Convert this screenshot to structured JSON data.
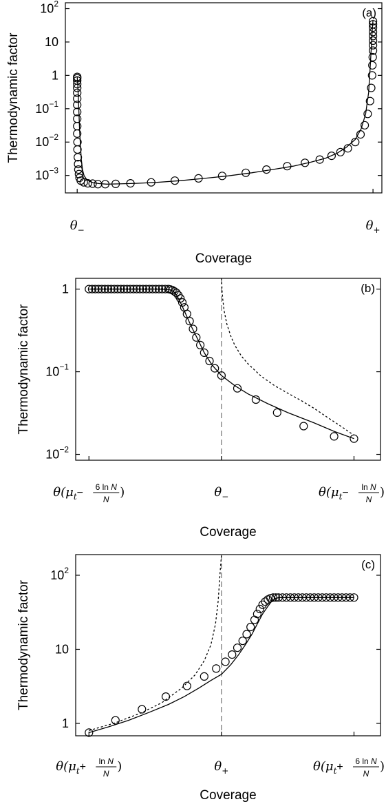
{
  "chart_data": [
    {
      "type": "line",
      "panel_label": "(a)",
      "xlabel": "Coverage",
      "ylabel": "Thermodynamic factor",
      "y_scale": "log",
      "ylim": [
        0.0003,
        150
      ],
      "y_ticks": [
        {
          "value": 0.001,
          "base": "10",
          "exp": "−3"
        },
        {
          "value": 0.01,
          "base": "10",
          "exp": "−2"
        },
        {
          "value": 0.1,
          "base": "10",
          "exp": "−1"
        },
        {
          "value": 1,
          "base": "1",
          "exp": ""
        },
        {
          "value": 10,
          "base": "10",
          "exp": ""
        },
        {
          "value": 100,
          "base": "10",
          "exp": "2"
        }
      ],
      "x_ticks": [
        {
          "x": 0,
          "symbol": "θ",
          "sub": "−"
        },
        {
          "x": 1,
          "symbol": "θ",
          "sub": "+"
        }
      ],
      "xlim": [
        -0.04,
        1.03
      ],
      "series": [
        {
          "style": "solid",
          "x": [
            0.0,
            0.002,
            0.004,
            0.006,
            0.008,
            0.011,
            0.014,
            0.018,
            0.023,
            0.03,
            0.04,
            0.055,
            0.075,
            0.1,
            0.14,
            0.2,
            0.27,
            0.35,
            0.43,
            0.51,
            0.59,
            0.66,
            0.73,
            0.79,
            0.84,
            0.88,
            0.91,
            0.94,
            0.96,
            0.975,
            0.985,
            0.99,
            0.994,
            0.997,
            1.0
          ],
          "y": [
            0.9,
            0.5,
            0.2,
            0.07,
            0.025,
            0.008,
            0.003,
            0.0015,
            0.001,
            0.0008,
            0.00068,
            0.0006,
            0.00057,
            0.00055,
            0.00056,
            0.00058,
            0.00062,
            0.0007,
            0.00082,
            0.00097,
            0.0012,
            0.0015,
            0.0019,
            0.0025,
            0.0033,
            0.0047,
            0.007,
            0.012,
            0.025,
            0.07,
            0.3,
            1.5,
            6,
            20,
            45
          ]
        }
      ],
      "markers": {
        "x": [
          0.0,
          0.0,
          0.0,
          0.0,
          0.0,
          0.0,
          0.0,
          0.0,
          0.0,
          0.0,
          0.0,
          0.0,
          0.001,
          0.001,
          0.002,
          0.003,
          0.004,
          0.006,
          0.008,
          0.012,
          0.022,
          0.036,
          0.052,
          0.07,
          0.095,
          0.13,
          0.18,
          0.25,
          0.33,
          0.41,
          0.49,
          0.57,
          0.64,
          0.71,
          0.77,
          0.82,
          0.86,
          0.89,
          0.915,
          0.94,
          0.958,
          0.972,
          0.982,
          0.99,
          0.994,
          0.997,
          0.998,
          0.999,
          1.0,
          1.0,
          1.0,
          1.0,
          1.0,
          1.0,
          1.0,
          1.0
        ],
        "y": [
          0.9,
          0.82,
          0.7,
          0.55,
          0.42,
          0.3,
          0.2,
          0.13,
          0.08,
          0.05,
          0.03,
          0.018,
          0.01,
          0.006,
          0.0035,
          0.0022,
          0.0015,
          0.0011,
          0.00085,
          0.0007,
          0.00062,
          0.00058,
          0.00057,
          0.00055,
          0.00055,
          0.00056,
          0.00058,
          0.00062,
          0.0007,
          0.00082,
          0.00097,
          0.0012,
          0.0015,
          0.0019,
          0.0024,
          0.003,
          0.0039,
          0.005,
          0.0065,
          0.01,
          0.017,
          0.032,
          0.07,
          0.17,
          0.42,
          1.0,
          2.0,
          3.5,
          5.5,
          8.0,
          11.0,
          15.0,
          20.0,
          27.0,
          34.0,
          42.0
        ]
      }
    },
    {
      "type": "line",
      "panel_label": "(b)",
      "xlabel": "Coverage",
      "ylabel": "Thermodynamic factor",
      "y_scale": "log",
      "ylim": [
        0.0085,
        1.35
      ],
      "y_ticks": [
        {
          "value": 0.01,
          "base": "10",
          "exp": "−2"
        },
        {
          "value": 0.1,
          "base": "10",
          "exp": "−1"
        },
        {
          "value": 1,
          "base": "1",
          "exp": ""
        }
      ],
      "xlim": [
        -0.1,
        2.2
      ],
      "x_ticks": [
        {
          "x": 0,
          "kind": "frac",
          "sign": "−",
          "coef": "6",
          "num": "ln N",
          "den": "N"
        },
        {
          "x": 1,
          "kind": "theta",
          "symbol": "θ",
          "sub": "−"
        },
        {
          "x": 2,
          "kind": "frac",
          "sign": "−",
          "coef": "",
          "num": "ln N",
          "den": "N"
        }
      ],
      "vline_x": 1,
      "series": [
        {
          "style": "solid",
          "x": [
            0.0,
            0.3,
            0.5,
            0.6,
            0.62,
            0.65,
            0.67,
            0.7,
            0.73,
            0.77,
            0.82,
            0.87,
            0.93,
            1.0,
            1.1,
            1.2,
            1.35,
            1.5,
            1.7,
            1.85,
            2.0
          ],
          "y": [
            1.0,
            1.0,
            1.0,
            0.99,
            0.97,
            0.9,
            0.8,
            0.64,
            0.5,
            0.36,
            0.25,
            0.17,
            0.12,
            0.09,
            0.068,
            0.054,
            0.041,
            0.032,
            0.024,
            0.019,
            0.0155
          ]
        },
        {
          "style": "dotted",
          "x": [
            0.998,
            1.0,
            1.005,
            1.01,
            1.02,
            1.04,
            1.07,
            1.1,
            1.15,
            1.2,
            1.3,
            1.4,
            1.5,
            1.6,
            1.7,
            1.8,
            1.9,
            2.0
          ],
          "y": [
            1.35,
            1.35,
            0.95,
            0.75,
            0.55,
            0.38,
            0.27,
            0.21,
            0.155,
            0.125,
            0.088,
            0.068,
            0.055,
            0.045,
            0.036,
            0.028,
            0.022,
            0.017
          ]
        }
      ],
      "markers": {
        "x": [
          0.0,
          0.024,
          0.048,
          0.072,
          0.096,
          0.12,
          0.144,
          0.168,
          0.192,
          0.216,
          0.24,
          0.264,
          0.288,
          0.312,
          0.336,
          0.36,
          0.384,
          0.408,
          0.432,
          0.456,
          0.48,
          0.504,
          0.528,
          0.552,
          0.576,
          0.6,
          0.615,
          0.63,
          0.645,
          0.66,
          0.675,
          0.69,
          0.705,
          0.72,
          0.74,
          0.76,
          0.785,
          0.81,
          0.84,
          0.87,
          0.91,
          0.95,
          1.0,
          1.12,
          1.26,
          1.42,
          1.62,
          1.85,
          2.0
        ],
        "y": [
          1.0,
          1.0,
          1.0,
          1.0,
          1.0,
          1.0,
          1.0,
          1.0,
          1.0,
          1.0,
          1.0,
          1.0,
          1.0,
          1.0,
          1.0,
          1.0,
          1.0,
          1.0,
          1.0,
          1.0,
          1.0,
          1.0,
          1.0,
          1.0,
          1.0,
          1.0,
          0.99,
          0.97,
          0.94,
          0.9,
          0.84,
          0.77,
          0.69,
          0.6,
          0.5,
          0.41,
          0.33,
          0.26,
          0.21,
          0.17,
          0.135,
          0.11,
          0.09,
          0.063,
          0.046,
          0.032,
          0.022,
          0.0165,
          0.0155
        ]
      }
    },
    {
      "type": "line",
      "panel_label": "(c)",
      "xlabel": "Coverage",
      "ylabel": "Thermodynamic factor",
      "y_scale": "log",
      "ylim": [
        0.68,
        190
      ],
      "y_ticks": [
        {
          "value": 1,
          "base": "1",
          "exp": ""
        },
        {
          "value": 10,
          "base": "10",
          "exp": ""
        },
        {
          "value": 100,
          "base": "10",
          "exp": "2"
        }
      ],
      "xlim": [
        -0.1,
        2.2
      ],
      "x_ticks": [
        {
          "x": 0,
          "kind": "frac",
          "sign": "+",
          "coef": "",
          "num": "ln N",
          "den": "N"
        },
        {
          "x": 1,
          "kind": "theta",
          "symbol": "θ",
          "sub": "+"
        },
        {
          "x": 2,
          "kind": "frac",
          "sign": "+",
          "coef": "6",
          "num": "ln N",
          "den": "N"
        }
      ],
      "vline_x": 1,
      "series": [
        {
          "style": "solid",
          "x": [
            0.0,
            0.15,
            0.3,
            0.45,
            0.6,
            0.72,
            0.83,
            0.92,
            1.0,
            1.07,
            1.13,
            1.18,
            1.23,
            1.27,
            1.31,
            1.35,
            1.38,
            1.41,
            1.44,
            1.5,
            1.7,
            2.0
          ],
          "y": [
            0.75,
            0.9,
            1.1,
            1.4,
            1.8,
            2.3,
            3.0,
            3.8,
            4.6,
            6.2,
            8.5,
            11.5,
            16.0,
            22.0,
            30.0,
            38.0,
            45.0,
            49.0,
            50.0,
            50.0,
            50.0,
            50.0
          ]
        },
        {
          "style": "dotted",
          "x": [
            0.0,
            0.2,
            0.4,
            0.55,
            0.7,
            0.8,
            0.87,
            0.92,
            0.955,
            0.975,
            0.99,
            1.0
          ],
          "y": [
            0.8,
            1.02,
            1.4,
            1.9,
            3.0,
            4.5,
            7.0,
            11.5,
            22.0,
            45.0,
            110.0,
            190.0
          ]
        }
      ],
      "markers": {
        "x": [
          0.0,
          0.2,
          0.4,
          0.58,
          0.74,
          0.87,
          0.96,
          1.03,
          1.08,
          1.12,
          1.16,
          1.19,
          1.22,
          1.25,
          1.27,
          1.29,
          1.31,
          1.33,
          1.35,
          1.37,
          1.39,
          1.41,
          1.43,
          1.46,
          1.49,
          1.52,
          1.55,
          1.58,
          1.61,
          1.64,
          1.67,
          1.7,
          1.73,
          1.76,
          1.79,
          1.82,
          1.85,
          1.88,
          1.91,
          1.94,
          1.97,
          2.0
        ],
        "y": [
          0.75,
          1.1,
          1.55,
          2.3,
          3.2,
          4.3,
          5.5,
          6.8,
          8.5,
          10.5,
          13.0,
          16.0,
          20.0,
          25.0,
          30.0,
          35.0,
          40.0,
          44.0,
          47.0,
          49.0,
          50.0,
          50.0,
          50.0,
          50.0,
          50.0,
          50.0,
          50.0,
          50.0,
          50.0,
          50.0,
          50.0,
          50.0,
          50.0,
          50.0,
          50.0,
          50.0,
          50.0,
          50.0,
          50.0,
          50.0,
          50.0,
          50.0
        ]
      }
    }
  ],
  "theta_mu": "θ(μ",
  "theta_mu_sub": "t"
}
